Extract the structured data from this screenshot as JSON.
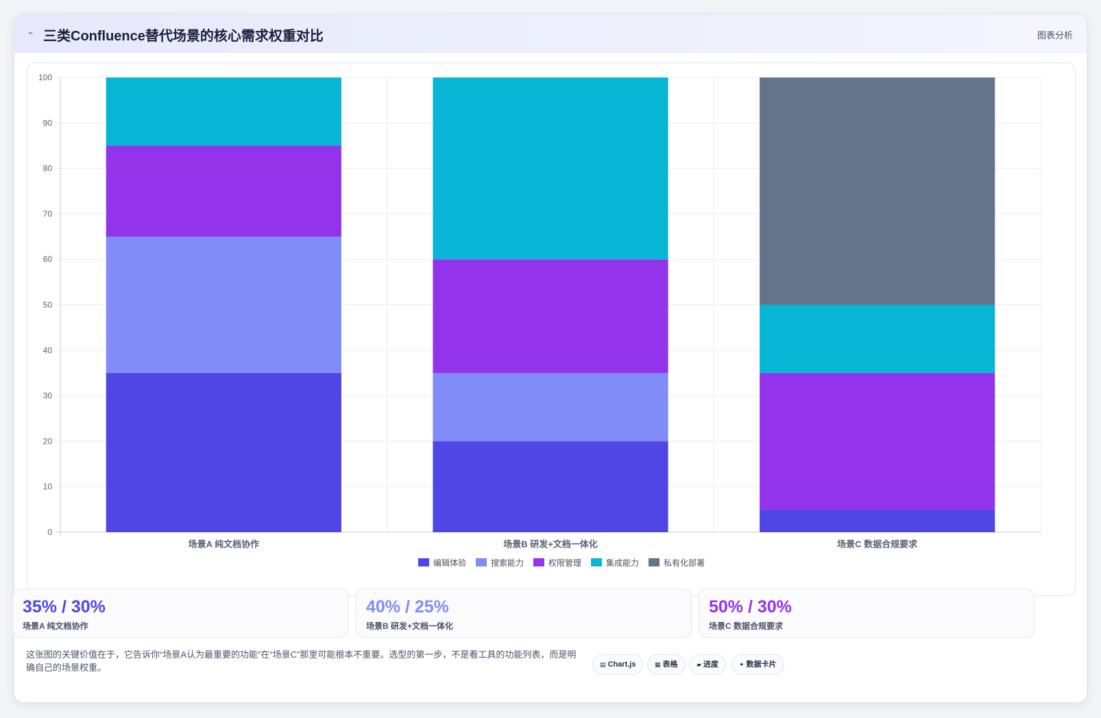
{
  "header": {
    "title": "三类Confluence替代场景的核心需求权重对比",
    "tag": "图表分析"
  },
  "chart_data": {
    "type": "bar",
    "stacked": true,
    "categories": [
      "场景A 纯文档协作",
      "场景B 研发+文档一体化",
      "场景C 数据合规要求"
    ],
    "series": [
      {
        "name": "编辑体验",
        "color": "#4f46e5",
        "values": [
          35,
          20,
          5
        ]
      },
      {
        "name": "搜索能力",
        "color": "#818cf8",
        "values": [
          30,
          15,
          0
        ]
      },
      {
        "name": "权限管理",
        "color": "#9333ea",
        "values": [
          20,
          25,
          30
        ]
      },
      {
        "name": "集成能力",
        "color": "#06b6d4",
        "values": [
          15,
          40,
          15
        ]
      },
      {
        "name": "私有化部署",
        "color": "#64748b",
        "values": [
          0,
          0,
          50
        ]
      }
    ],
    "ylim": [
      0,
      100
    ],
    "yticks": [
      "0",
      "10",
      "20",
      "30",
      "40",
      "50",
      "60",
      "70",
      "80",
      "90",
      "100"
    ],
    "grid": true,
    "legend": "bottom"
  },
  "stats": [
    {
      "value": "35% / 30%",
      "label": "场景A 纯文档协作",
      "color": "#4f46e5"
    },
    {
      "value": "40% / 25%",
      "label": "场景B 研发+文档一体化",
      "color": "#818cf8"
    },
    {
      "value": "50% / 30%",
      "label": "场景C 数据合规要求",
      "color": "#9333ea"
    }
  ],
  "note": "这张图的关键价值在于，它告诉你“场景A认为最重要的功能”在“场景C”那里可能根本不重要。选型的第一步，不是看工具的功能列表，而是明确自己的场景权重。",
  "chips": [
    {
      "icon": "▤",
      "label": "Chart.js"
    },
    {
      "icon": "▦",
      "label": "表格"
    },
    {
      "icon": "▰",
      "label": "进度"
    },
    {
      "icon": "✦",
      "label": "数据卡片"
    }
  ]
}
